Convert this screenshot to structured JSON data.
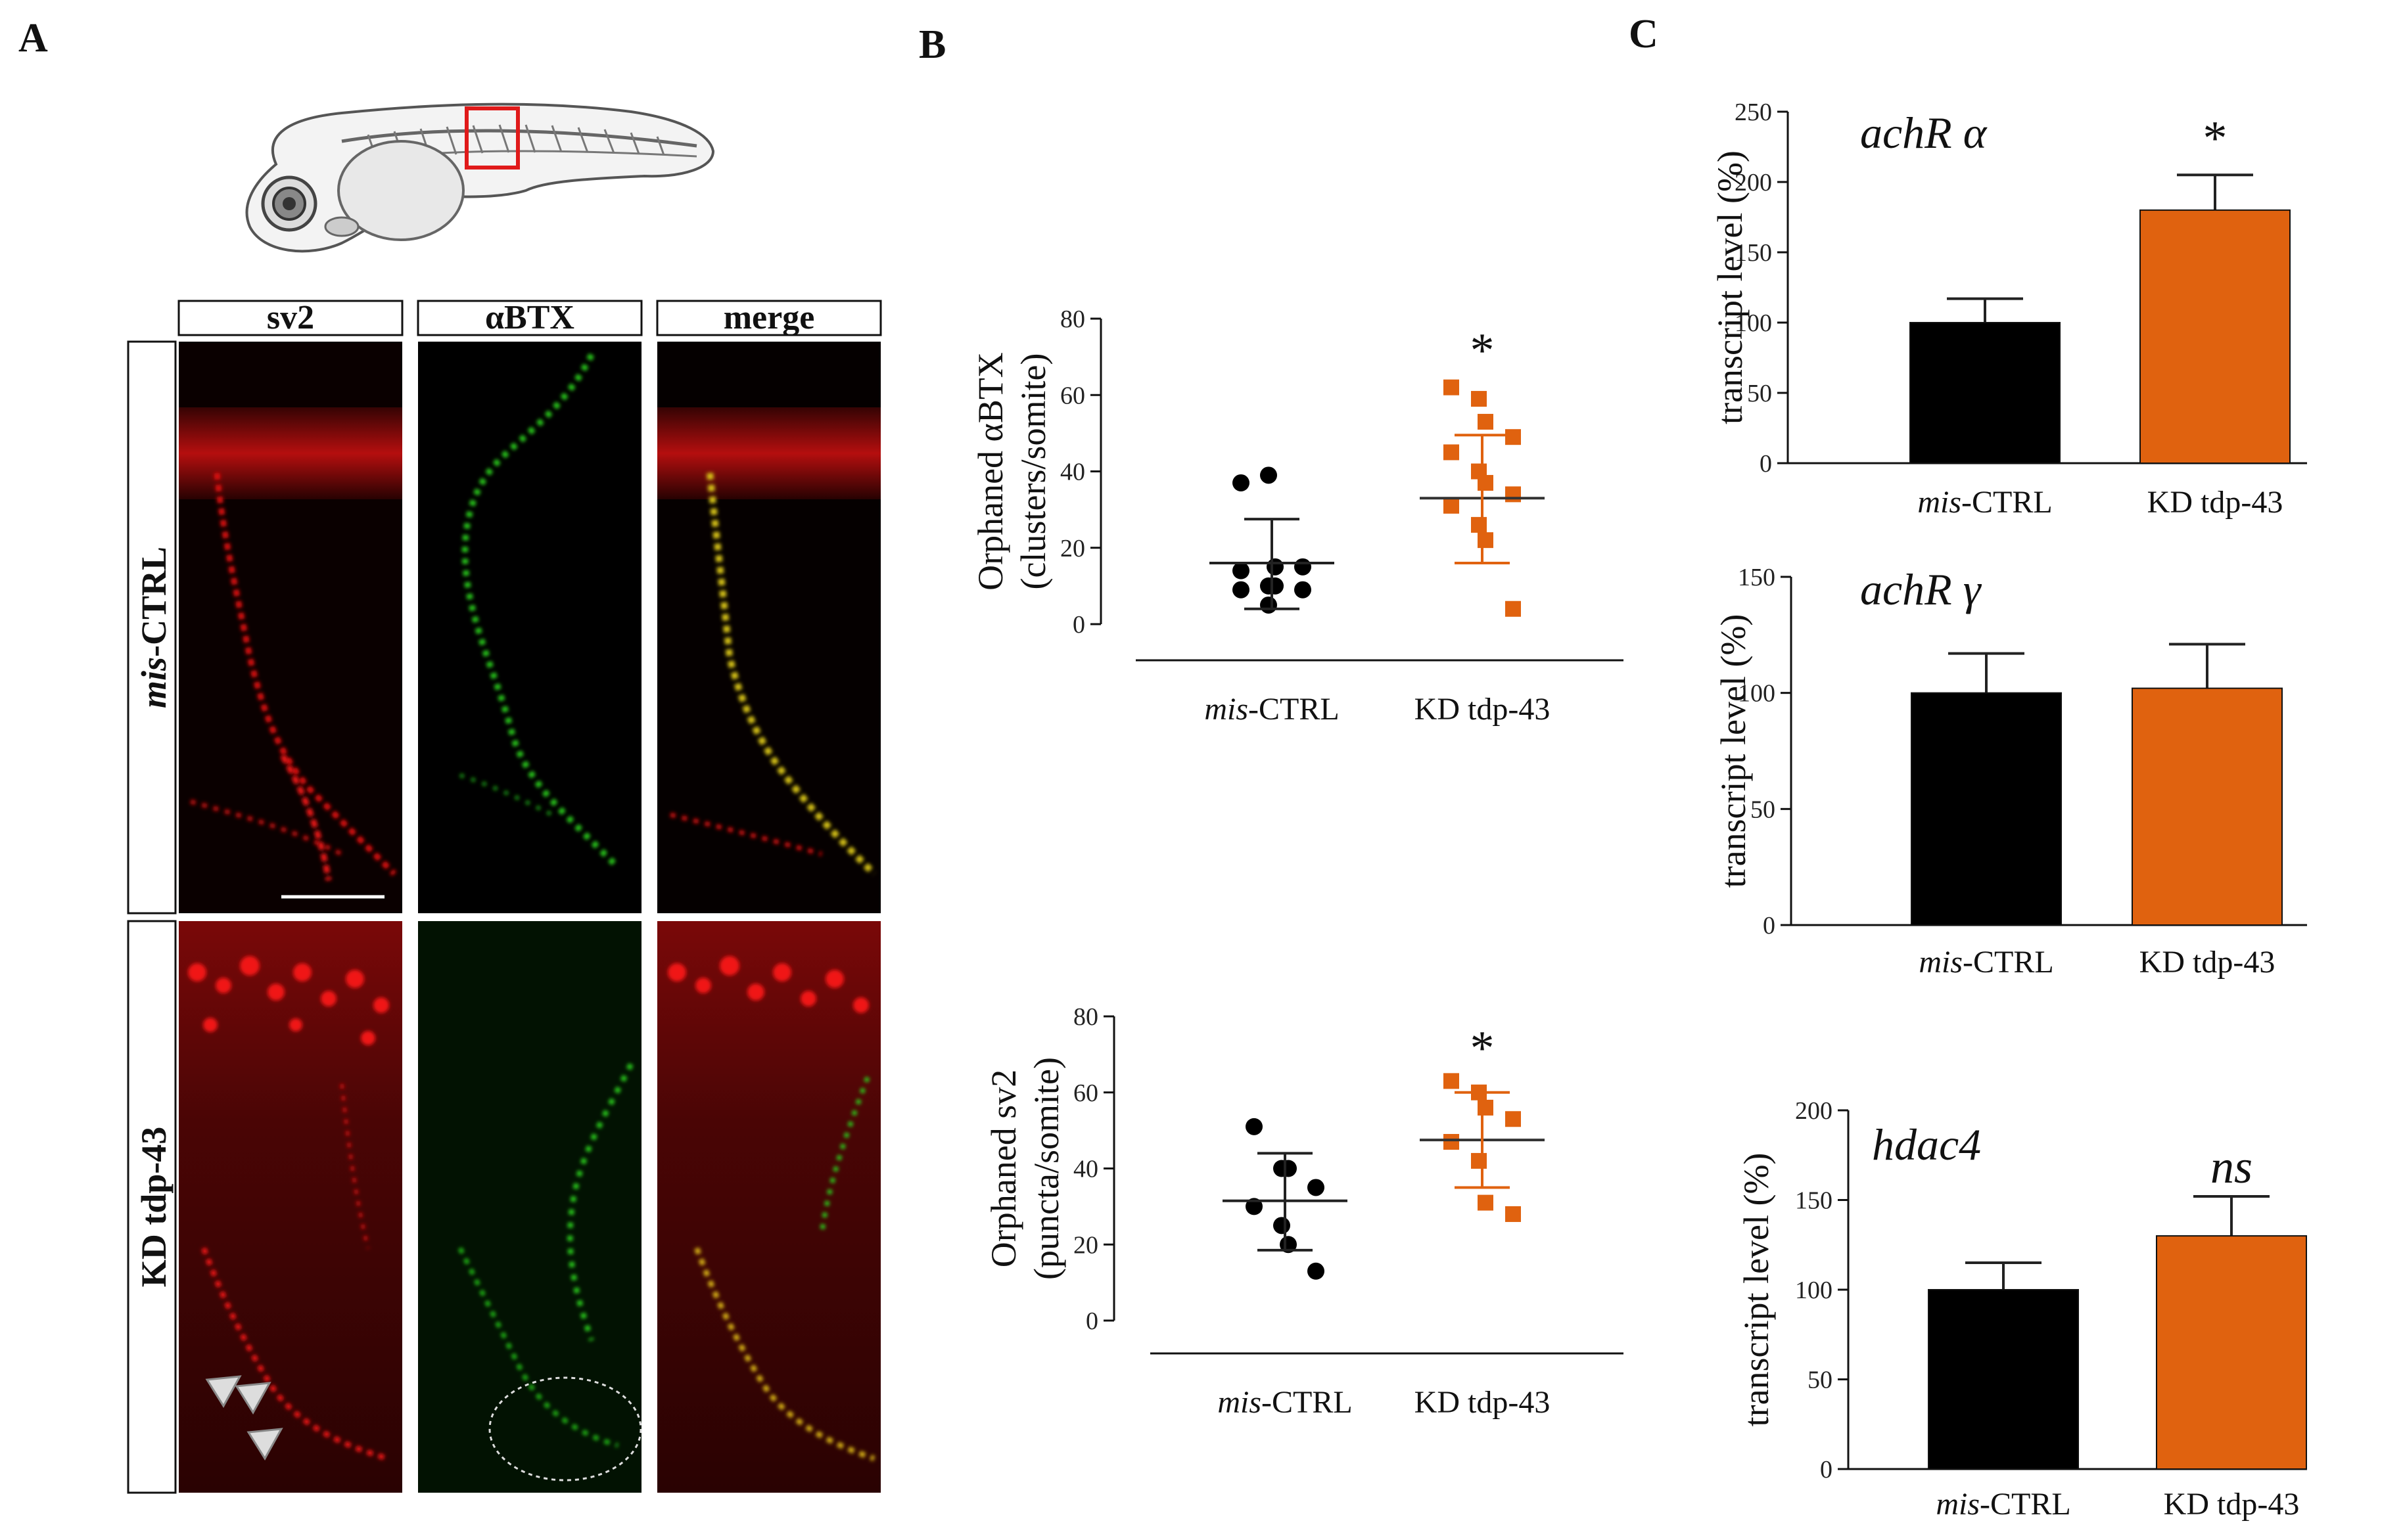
{
  "panel_labels": {
    "a": "A",
    "b": "B",
    "c": "C"
  },
  "panel_a": {
    "columns": [
      "sv2",
      "αBTX",
      "merge"
    ],
    "rows": [
      {
        "label_italic": "mis",
        "label_rest": "-CTRL"
      },
      {
        "label_italic": "",
        "label_rest": "KD tdp-43"
      }
    ],
    "embryo_icon": "zebrafish-embryo-icon",
    "colors": {
      "red": "#e01010",
      "green": "#28c81e",
      "highlight_box": "#e01a1a"
    }
  },
  "categories": [
    {
      "italic": "mis",
      "rest": "-CTRL"
    },
    {
      "italic": "",
      "rest": "KD tdp-43"
    }
  ],
  "colors": {
    "ctrl": "#000000",
    "kd": "#e0620f"
  },
  "chart_data": [
    {
      "type": "scatter",
      "panel": "B-top",
      "ylabel_line1": "Orphaned αBTX",
      "ylabel_line2": "(clusters/somite)",
      "ylim": [
        0,
        80
      ],
      "yticks": [
        0,
        20,
        40,
        60,
        80
      ],
      "significance": "*",
      "series": [
        {
          "points": [
            37,
            39,
            15,
            15,
            14,
            10,
            10,
            9,
            9,
            5
          ],
          "mean": 16,
          "sd_low": 4,
          "sd_high": 27.5
        },
        {
          "points": [
            62,
            59,
            53,
            49,
            45,
            40,
            37,
            34,
            31,
            26,
            22,
            4
          ],
          "mean": 33,
          "sd_low": 16,
          "sd_high": 49.5
        }
      ]
    },
    {
      "type": "scatter",
      "panel": "B-bottom",
      "ylabel_line1": "Orphaned sv2",
      "ylabel_line2": "(puncta/somite)",
      "ylim": [
        0,
        80
      ],
      "yticks": [
        0,
        20,
        40,
        60,
        80
      ],
      "significance": "*",
      "series": [
        {
          "points": [
            51,
            40,
            40,
            35,
            30,
            25,
            20,
            13
          ],
          "mean": 31.5,
          "sd_low": 18.5,
          "sd_high": 44
        },
        {
          "points": [
            63,
            60,
            56,
            53,
            47,
            42,
            31,
            28
          ],
          "mean": 47.5,
          "sd_low": 35,
          "sd_high": 60
        }
      ]
    },
    {
      "type": "bar",
      "panel": "C-achRa",
      "gene_label": "achR α",
      "ylabel": "transcript  level (%)",
      "ylim": [
        0,
        250
      ],
      "yticks": [
        0,
        50,
        100,
        150,
        200,
        250
      ],
      "values": [
        100,
        180
      ],
      "errors": [
        17,
        25
      ],
      "significance": "*"
    },
    {
      "type": "bar",
      "panel": "C-achRg",
      "gene_label": "achR γ",
      "ylabel": "transcript  level (%)",
      "ylim": [
        0,
        150
      ],
      "yticks": [
        0,
        50,
        100,
        150
      ],
      "values": [
        100,
        102
      ],
      "errors": [
        17,
        19
      ],
      "significance": ""
    },
    {
      "type": "bar",
      "panel": "C-hdac4",
      "gene_label": "hdac4",
      "ylabel": "transcript  level (%)",
      "ylim": [
        0,
        200
      ],
      "yticks": [
        0,
        50,
        100,
        150,
        200
      ],
      "values": [
        100,
        130
      ],
      "errors": [
        15,
        22
      ],
      "significance": "ns"
    }
  ]
}
